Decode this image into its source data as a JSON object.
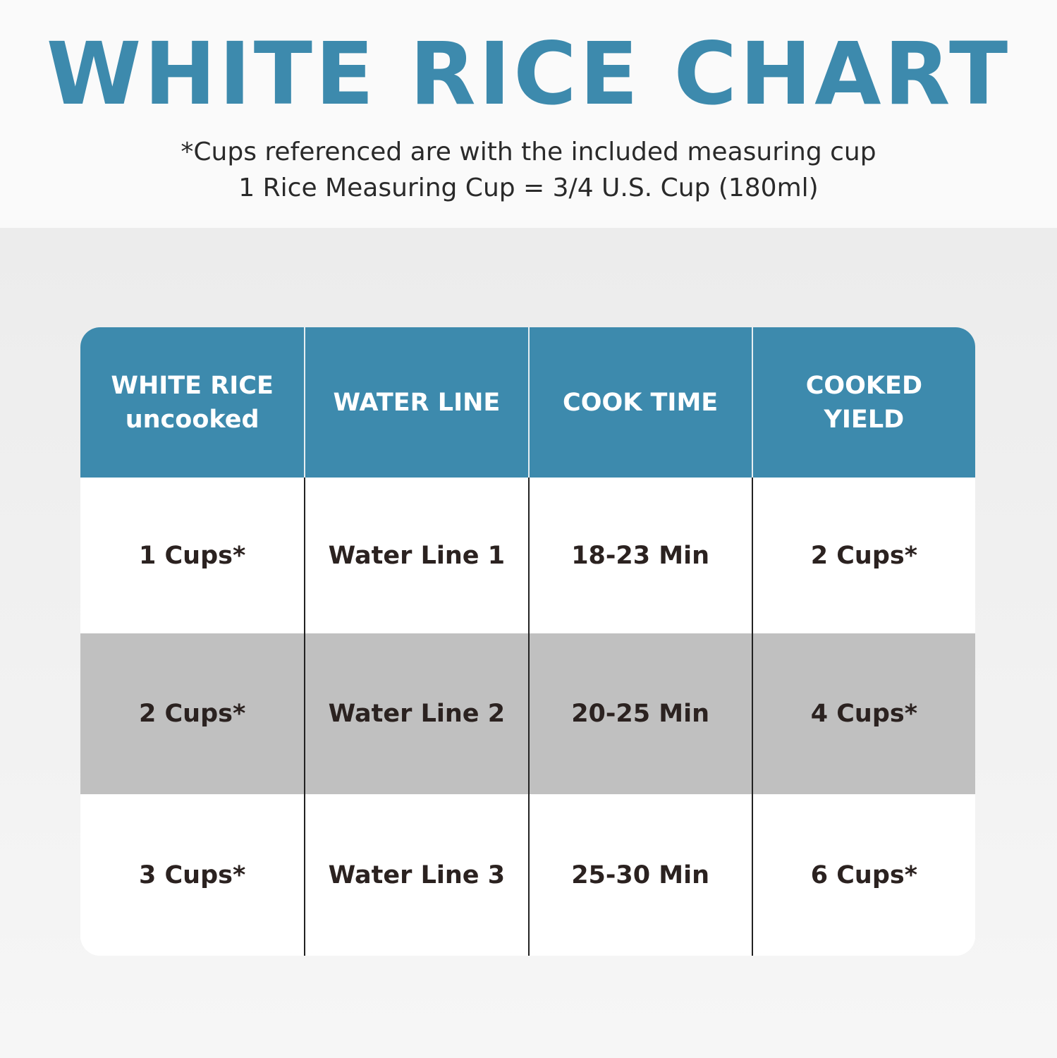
{
  "title": "WHITE RICE CHART",
  "subtitle_line1": "*Cups referenced are with the included measuring cup",
  "subtitle_line2": "1 Rice Measuring Cup = 3/4 U.S. Cup (180ml)",
  "colors": {
    "accent": "#3d8aad",
    "alt_row": "#c0c0c0"
  },
  "table": {
    "headers": [
      {
        "line1": "WHITE RICE",
        "line2": "uncooked"
      },
      {
        "line1": "WATER LINE",
        "line2": ""
      },
      {
        "line1": "COOK TIME",
        "line2": ""
      },
      {
        "line1": "COOKED",
        "line2": "YIELD"
      }
    ],
    "rows": [
      [
        "1 Cups*",
        "Water Line 1",
        "18-23 Min",
        "2 Cups*"
      ],
      [
        "2 Cups*",
        "Water Line 2",
        "20-25 Min",
        "4 Cups*"
      ],
      [
        "3 Cups*",
        "Water Line 3",
        "25-30 Min",
        "6 Cups*"
      ]
    ]
  }
}
